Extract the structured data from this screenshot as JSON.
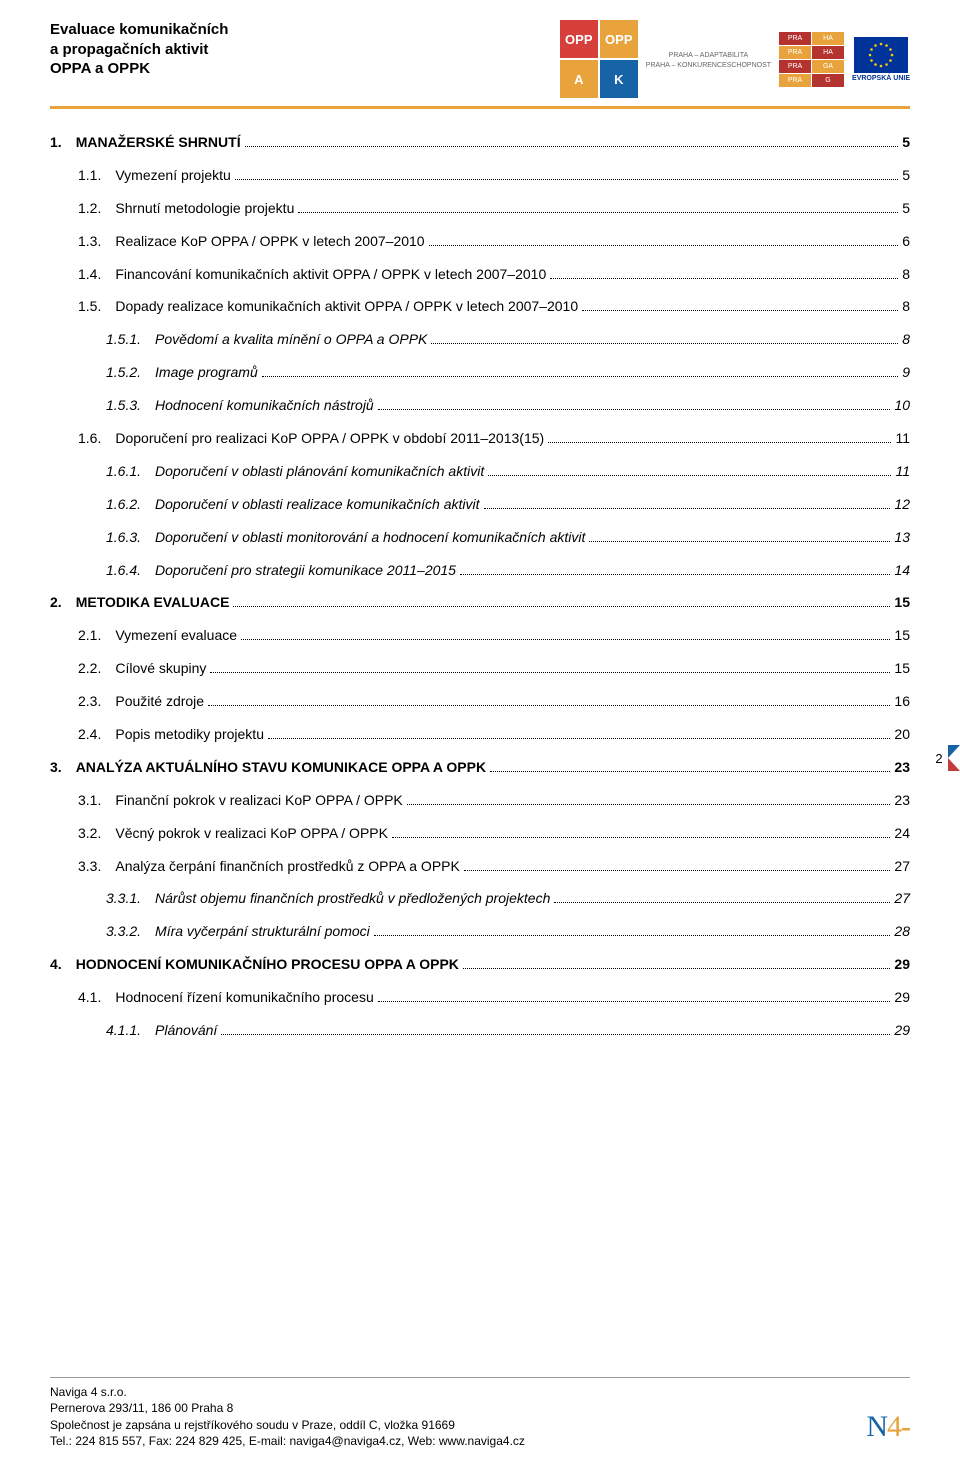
{
  "header": {
    "title_line1": "Evaluace komunikačních",
    "title_line2": "a propagačních aktivit",
    "title_line3": "OPPA a OPPK",
    "opp_a": "OPP",
    "opp_a2": "A",
    "opp_k": "OPP",
    "opp_k2": "K",
    "logo_sub1": "PRAHA – ADAPTABILITA",
    "logo_sub2": "PRAHA – KONKURENCESCHOPNOST",
    "praha_cells": [
      "PRA",
      "HA",
      "PRA",
      "HA",
      "PRA",
      "GA",
      "PRA",
      "G"
    ],
    "eu_caption": "EVROPSKÁ UNIE"
  },
  "colors": {
    "orange": "#e8a33d",
    "blue": "#1663a6",
    "red": "#c33b3b",
    "eu_blue": "#003399",
    "eu_gold": "#ffcc00",
    "praha_red": "#b5332e",
    "praha_yellow": "#e8a33d"
  },
  "page_number": "2",
  "toc": [
    {
      "level": 1,
      "num": "1.",
      "label": "MANAŽERSKÉ SHRNUTÍ",
      "page": "5"
    },
    {
      "level": 2,
      "num": "1.1.",
      "label": "Vymezení projektu",
      "page": "5"
    },
    {
      "level": 2,
      "num": "1.2.",
      "label": "Shrnutí metodologie projektu",
      "page": "5"
    },
    {
      "level": 2,
      "num": "1.3.",
      "label": "Realizace KoP OPPA / OPPK v letech 2007–2010",
      "page": "6"
    },
    {
      "level": 2,
      "num": "1.4.",
      "label": "Financování komunikačních aktivit OPPA / OPPK v letech 2007–2010",
      "page": "8"
    },
    {
      "level": 2,
      "num": "1.5.",
      "label": "Dopady realizace komunikačních aktivit OPPA / OPPK v letech 2007–2010",
      "page": "8"
    },
    {
      "level": 3,
      "num": "1.5.1.",
      "label": "Povědomí a kvalita mínění o OPPA a OPPK",
      "page": "8"
    },
    {
      "level": 3,
      "num": "1.5.2.",
      "label": "Image programů",
      "page": "9"
    },
    {
      "level": 3,
      "num": "1.5.3.",
      "label": "Hodnocení komunikačních nástrojů",
      "page": "10"
    },
    {
      "level": 2,
      "num": "1.6.",
      "label": "Doporučení pro realizaci KoP OPPA / OPPK v období 2011–2013(15)",
      "page": "11"
    },
    {
      "level": 3,
      "num": "1.6.1.",
      "label": "Doporučení v oblasti plánování komunikačních aktivit",
      "page": "11"
    },
    {
      "level": 3,
      "num": "1.6.2.",
      "label": "Doporučení v oblasti realizace komunikačních aktivit",
      "page": "12"
    },
    {
      "level": 3,
      "num": "1.6.3.",
      "label": "Doporučení v oblasti monitorování a hodnocení komunikačních aktivit",
      "page": "13"
    },
    {
      "level": 3,
      "num": "1.6.4.",
      "label": "Doporučení pro strategii komunikace 2011–2015",
      "page": "14"
    },
    {
      "level": 1,
      "num": "2.",
      "label": "METODIKA EVALUACE",
      "page": "15"
    },
    {
      "level": 2,
      "num": "2.1.",
      "label": "Vymezení evaluace",
      "page": "15"
    },
    {
      "level": 2,
      "num": "2.2.",
      "label": "Cílové skupiny",
      "page": "15"
    },
    {
      "level": 2,
      "num": "2.3.",
      "label": "Použité zdroje",
      "page": "16"
    },
    {
      "level": 2,
      "num": "2.4.",
      "label": "Popis metodiky projektu",
      "page": "20"
    },
    {
      "level": 1,
      "num": "3.",
      "label": "ANALÝZA AKTUÁLNÍHO STAVU KOMUNIKACE OPPA A OPPK",
      "page": "23"
    },
    {
      "level": 2,
      "num": "3.1.",
      "label": "Finanční pokrok v realizaci KoP OPPA / OPPK",
      "page": "23"
    },
    {
      "level": 2,
      "num": "3.2.",
      "label": "Věcný pokrok v realizaci KoP OPPA / OPPK",
      "page": "24"
    },
    {
      "level": 2,
      "num": "3.3.",
      "label": "Analýza čerpání finančních prostředků z OPPA a OPPK",
      "page": "27"
    },
    {
      "level": 3,
      "num": "3.3.1.",
      "label": "Nárůst objemu finančních prostředků v předložených projektech",
      "page": "27"
    },
    {
      "level": 3,
      "num": "3.3.2.",
      "label": "Míra vyčerpání strukturální pomoci",
      "page": "28"
    },
    {
      "level": 1,
      "num": "4.",
      "label": "HODNOCENÍ KOMUNIKAČNÍHO PROCESU OPPA A OPPK",
      "page": "29"
    },
    {
      "level": 2,
      "num": "4.1.",
      "label": "Hodnocení řízení komunikačního procesu",
      "page": "29"
    },
    {
      "level": 3,
      "num": "4.1.1.",
      "label": "Plánování",
      "page": "29"
    }
  ],
  "footer": {
    "line1": "Naviga 4  s.r.o.",
    "line2": "Pernerova 293/11, 186 00 Praha 8",
    "line3": "Společnost je zapsána u rejstříkového soudu v Praze, oddíl C, vložka 91669",
    "line4": "Tel.: 224 815 557, Fax: 224 829 425, E-mail: naviga4@naviga4.cz, Web: www.naviga4.cz",
    "logo_n": "N",
    "logo_4": "4",
    "logo_dash": "-"
  }
}
